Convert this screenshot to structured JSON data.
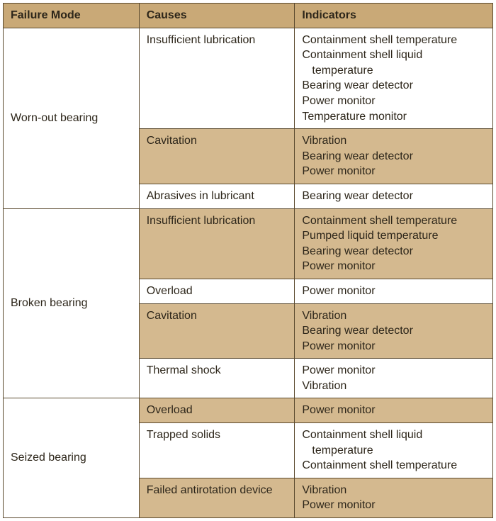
{
  "colors": {
    "header_bg": "#c9a977",
    "shade_bg": "#d4b98f",
    "plain_bg": "#ffffff",
    "border": "#5b4a2f",
    "text": "#2d261a"
  },
  "columns": [
    "Failure Mode",
    "Causes",
    "Indicators"
  ],
  "groups": [
    {
      "mode": "Worn-out bearing",
      "rows": [
        {
          "cause": "Insufficient lubrication",
          "indicators": [
            "Containment shell temperature",
            "Containment shell liquid",
            "  temperature",
            "Bearing wear detector",
            "Power monitor",
            "Temperature monitor"
          ],
          "shade": false
        },
        {
          "cause": "Cavitation",
          "indicators": [
            "Vibration",
            "Bearing wear detector",
            "Power monitor"
          ],
          "shade": true
        },
        {
          "cause": "Abrasives in lubricant",
          "indicators": [
            "Bearing wear detector"
          ],
          "shade": false
        }
      ]
    },
    {
      "mode": "Broken bearing",
      "rows": [
        {
          "cause": "Insufficient lubrication",
          "indicators": [
            "Containment shell temperature",
            "Pumped liquid temperature",
            "Bearing wear detector",
            "Power monitor"
          ],
          "shade": true
        },
        {
          "cause": "Overload",
          "indicators": [
            "Power monitor"
          ],
          "shade": false
        },
        {
          "cause": "Cavitation",
          "indicators": [
            "Vibration",
            "Bearing wear detector",
            "Power monitor"
          ],
          "shade": true
        },
        {
          "cause": "Thermal shock",
          "indicators": [
            "Power monitor",
            "Vibration"
          ],
          "shade": false
        }
      ]
    },
    {
      "mode": "Seized bearing",
      "rows": [
        {
          "cause": "Overload",
          "indicators": [
            "Power monitor"
          ],
          "shade": true
        },
        {
          "cause": "Trapped solids",
          "indicators": [
            "Containment shell liquid",
            "  temperature",
            "Containment shell temperature"
          ],
          "shade": false
        },
        {
          "cause": "Failed antirotation device",
          "indicators": [
            "Vibration",
            "Power monitor"
          ],
          "shade": true
        }
      ]
    }
  ]
}
